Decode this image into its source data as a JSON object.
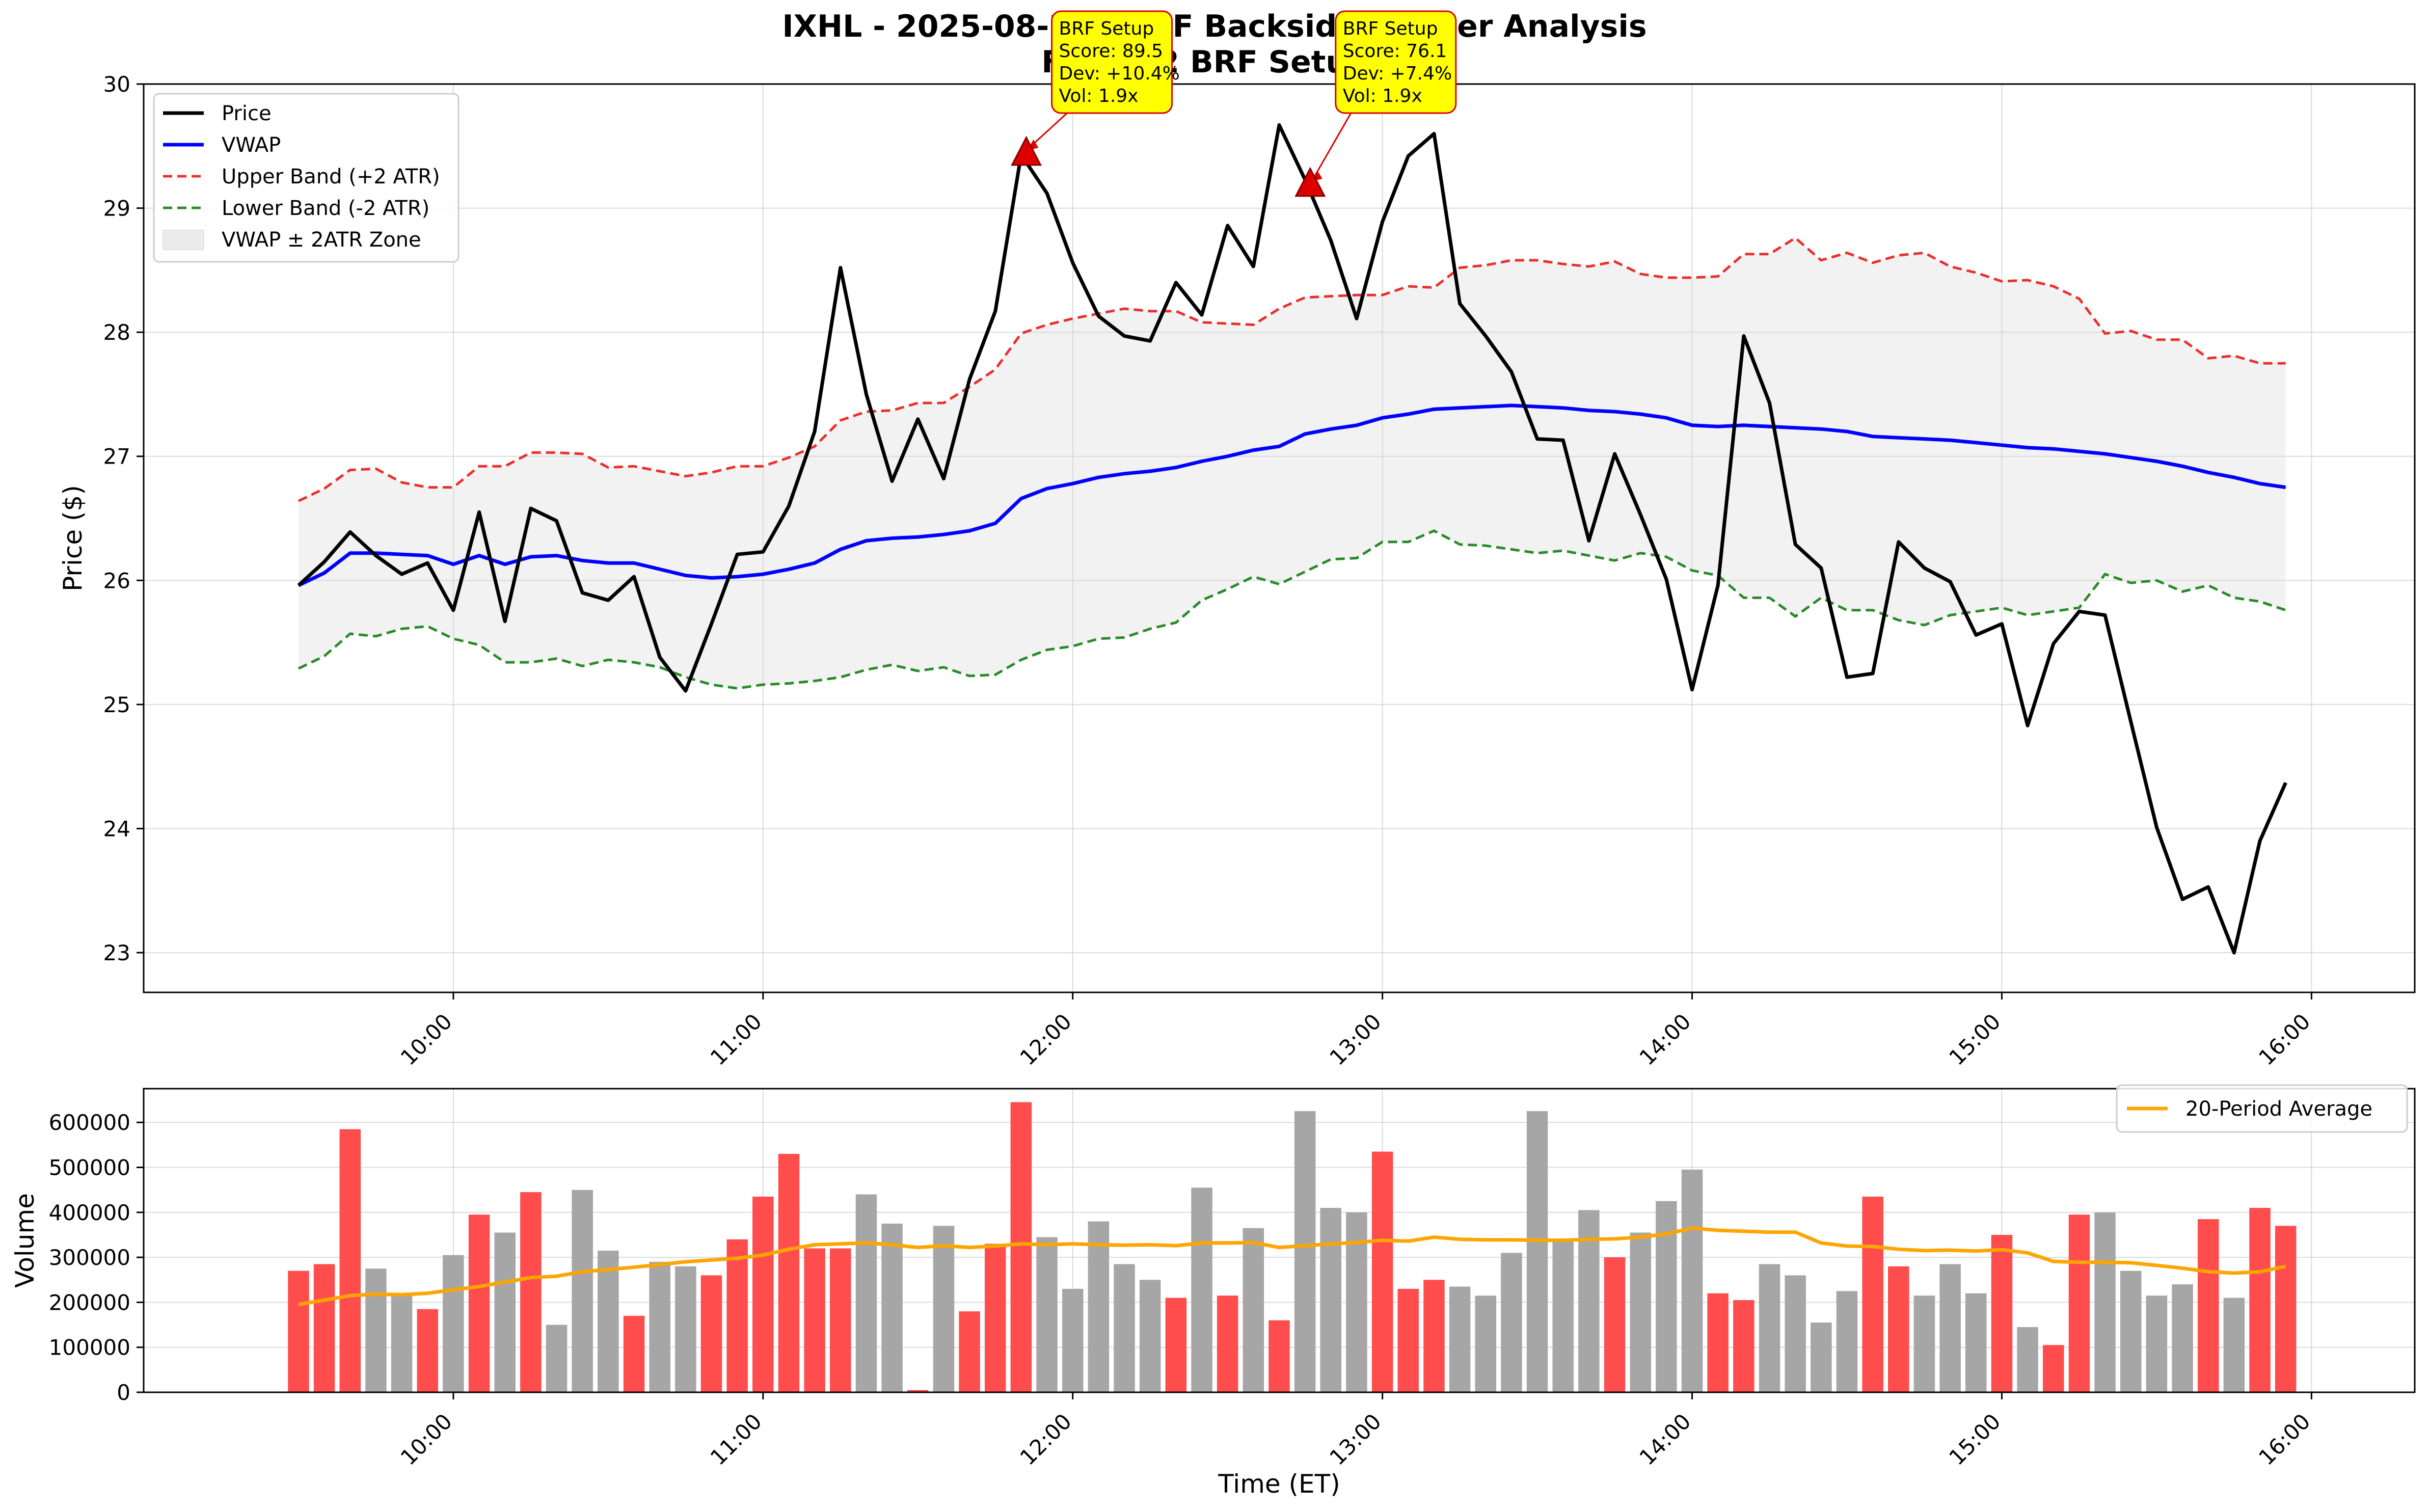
{
  "chart_data": [
    {
      "type": "line",
      "title": "IXHL - 2025-08-26 - BRF Backside Runner Analysis",
      "subtitle": "Found 2 BRF Setups",
      "ylabel": "Price ($)",
      "ylim": [
        22.68,
        30.0
      ],
      "yticks": [
        "23",
        "24",
        "25",
        "26",
        "27",
        "28",
        "29",
        "30"
      ],
      "xlim_minutes": [
        540,
        980
      ],
      "xticks": [
        {
          "label": "10:00",
          "t": 600
        },
        {
          "label": "11:00",
          "t": 660
        },
        {
          "label": "12:00",
          "t": 720
        },
        {
          "label": "13:00",
          "t": 780
        },
        {
          "label": "14:00",
          "t": 840
        },
        {
          "label": "15:00",
          "t": 900
        },
        {
          "label": "16:00",
          "t": 960
        }
      ],
      "x_start": "09:30",
      "x_step_minutes": 5,
      "grid": true,
      "legend_position": "upper-left",
      "legend": [
        "Price",
        "VWAP",
        "Upper Band (+2 ATR)",
        "Lower Band (-2 ATR)",
        "VWAP ± 2ATR Zone"
      ],
      "colors": {
        "price": "#000000",
        "vwap": "#0000ff",
        "upper": "#e8302f",
        "lower": "#2a8a2a",
        "zone": "#d9d9d9",
        "marker": "#dd0000",
        "annotation_fill": "#ffff00"
      },
      "series": [
        {
          "name": "Price",
          "values": [
            25.96,
            26.15,
            26.39,
            26.2,
            26.05,
            26.14,
            25.76,
            26.55,
            25.67,
            26.58,
            26.48,
            25.9,
            25.84,
            26.03,
            25.38,
            25.11,
            25.65,
            26.21,
            26.23,
            26.6,
            27.2,
            28.52,
            27.5,
            26.8,
            27.3,
            26.82,
            27.62,
            28.17,
            29.43,
            29.12,
            28.56,
            28.13,
            27.97,
            27.93,
            28.4,
            28.14,
            28.86,
            28.53,
            29.67,
            29.23,
            28.74,
            28.11,
            28.89,
            29.42,
            29.6,
            28.23,
            27.97,
            27.68,
            27.14,
            27.13,
            26.32,
            27.02,
            26.53,
            26.01,
            25.12,
            25.96,
            27.97,
            27.43,
            26.29,
            26.1,
            25.22,
            25.25,
            26.31,
            26.1,
            25.99,
            25.56,
            25.65,
            24.83,
            25.49,
            25.75,
            25.72,
            24.86,
            24.01,
            23.43,
            23.53,
            23.0,
            23.9,
            24.37
          ]
        },
        {
          "name": "VWAP",
          "values": [
            25.96,
            26.06,
            26.22,
            26.22,
            26.21,
            26.2,
            26.13,
            26.2,
            26.13,
            26.19,
            26.2,
            26.16,
            26.14,
            26.14,
            26.09,
            26.04,
            26.02,
            26.03,
            26.05,
            26.09,
            26.14,
            26.25,
            26.32,
            26.34,
            26.35,
            26.37,
            26.4,
            26.46,
            26.66,
            26.74,
            26.78,
            26.83,
            26.86,
            26.88,
            26.91,
            26.96,
            27.0,
            27.05,
            27.08,
            27.18,
            27.22,
            27.25,
            27.31,
            27.34,
            27.38,
            27.39,
            27.4,
            27.41,
            27.4,
            27.39,
            27.37,
            27.36,
            27.34,
            27.31,
            27.25,
            27.24,
            27.25,
            27.24,
            27.23,
            27.22,
            27.2,
            27.16,
            27.15,
            27.14,
            27.13,
            27.11,
            27.09,
            27.07,
            27.06,
            27.04,
            27.02,
            26.99,
            26.96,
            26.92,
            26.87,
            26.83,
            26.78,
            26.75
          ]
        },
        {
          "name": "Upper Band (+2 ATR)",
          "values": [
            26.64,
            26.74,
            26.89,
            26.9,
            26.79,
            26.75,
            26.75,
            26.92,
            26.92,
            27.03,
            27.03,
            27.02,
            26.91,
            26.92,
            26.88,
            26.84,
            26.87,
            26.92,
            26.92,
            26.99,
            27.08,
            27.29,
            27.36,
            27.37,
            27.43,
            27.43,
            27.56,
            27.7,
            27.99,
            28.06,
            28.11,
            28.15,
            28.19,
            28.17,
            28.17,
            28.08,
            28.07,
            28.06,
            28.19,
            28.28,
            28.29,
            28.3,
            28.3,
            28.37,
            28.36,
            28.52,
            28.54,
            28.58,
            28.58,
            28.55,
            28.53,
            28.57,
            28.47,
            28.44,
            28.44,
            28.45,
            28.63,
            28.63,
            28.76,
            28.58,
            28.64,
            28.56,
            28.62,
            28.64,
            28.53,
            28.48,
            28.41,
            28.42,
            28.37,
            28.27,
            27.99,
            28.01,
            27.94,
            27.94,
            27.79,
            27.81,
            27.75,
            27.75
          ]
        },
        {
          "name": "Lower Band (-2 ATR)",
          "values": [
            25.29,
            25.39,
            25.57,
            25.55,
            25.61,
            25.63,
            25.53,
            25.48,
            25.34,
            25.34,
            25.37,
            25.31,
            25.36,
            25.34,
            25.3,
            25.22,
            25.16,
            25.13,
            25.16,
            25.17,
            25.19,
            25.22,
            25.28,
            25.32,
            25.27,
            25.3,
            25.23,
            25.24,
            25.36,
            25.44,
            25.47,
            25.53,
            25.54,
            25.61,
            25.66,
            25.84,
            25.93,
            26.03,
            25.97,
            26.07,
            26.17,
            26.18,
            26.31,
            26.31,
            26.4,
            26.29,
            26.28,
            26.25,
            26.22,
            26.24,
            26.2,
            26.16,
            26.22,
            26.19,
            26.08,
            26.04,
            25.86,
            25.86,
            25.71,
            25.86,
            25.76,
            25.76,
            25.68,
            25.64,
            25.72,
            25.75,
            25.78,
            25.72,
            25.75,
            25.78,
            26.05,
            25.98,
            26.0,
            25.91,
            25.96,
            25.86,
            25.83,
            25.76
          ]
        }
      ],
      "annotations": [
        {
          "t": 711,
          "price": 29.43,
          "lines": [
            "BRF Setup",
            "Score: 89.5",
            "Dev: +10.4%",
            "Vol: 1.9x"
          ]
        },
        {
          "t": 766,
          "price": 29.18,
          "lines": [
            "BRF Setup",
            "Score: 76.1",
            "Dev: +7.4%",
            "Vol: 1.9x"
          ]
        }
      ]
    },
    {
      "type": "bar",
      "ylabel": "Volume",
      "xlabel": "Time (ET)",
      "ylim": [
        0,
        675000
      ],
      "yticks": [
        "0",
        "100000",
        "200000",
        "300000",
        "400000",
        "500000",
        "600000"
      ],
      "grid": true,
      "legend_position": "upper-right",
      "legend": [
        "20-Period Average"
      ],
      "colors": {
        "up": "#ff4d4d",
        "down": "#a6a6a6",
        "average": "#ffa500"
      },
      "series": [
        {
          "name": "Volume",
          "values": [
            270000,
            285000,
            585000,
            275000,
            215000,
            185000,
            305000,
            395000,
            355000,
            445000,
            150000,
            450000,
            315000,
            170000,
            290000,
            280000,
            260000,
            340000,
            435000,
            530000,
            320000,
            320000,
            440000,
            375000,
            5000,
            370000,
            180000,
            330000,
            645000,
            345000,
            230000,
            380000,
            285000,
            250000,
            210000,
            455000,
            215000,
            365000,
            160000,
            625000,
            410000,
            400000,
            535000,
            230000,
            250000,
            235000,
            215000,
            310000,
            625000,
            335000,
            405000,
            300000,
            355000,
            425000,
            495000,
            220000,
            205000,
            285000,
            260000,
            155000,
            225000,
            435000,
            280000,
            215000,
            285000,
            220000,
            350000,
            145000,
            105000,
            395000,
            400000,
            270000,
            215000,
            240000,
            385000,
            210000,
            410000,
            370000
          ]
        },
        {
          "name": "20-Period Average",
          "values": [
            195000,
            205000,
            215000,
            218000,
            217000,
            220000,
            228000,
            235000,
            245000,
            255000,
            258000,
            268000,
            273000,
            278000,
            284000,
            290000,
            294000,
            298000,
            305000,
            318000,
            328000,
            330000,
            332000,
            328000,
            322000,
            326000,
            322000,
            325000,
            330000,
            328000,
            330000,
            328000,
            327000,
            328000,
            326000,
            332000,
            332000,
            333000,
            322000,
            326000,
            330000,
            333000,
            338000,
            336000,
            345000,
            340000,
            339000,
            339000,
            338000,
            338000,
            340000,
            341000,
            345000,
            352000,
            365000,
            360000,
            358000,
            356000,
            356000,
            332000,
            325000,
            324000,
            318000,
            315000,
            316000,
            314000,
            317000,
            310000,
            291000,
            289000,
            289000,
            288000,
            282000,
            276000,
            268000,
            265000,
            268000,
            280000
          ]
        }
      ]
    }
  ]
}
